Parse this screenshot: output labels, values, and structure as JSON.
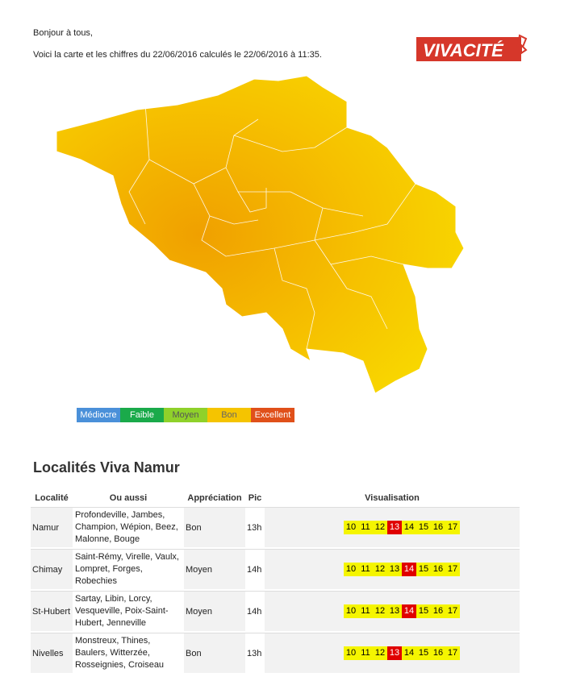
{
  "intro": {
    "greeting": "Bonjour à tous,",
    "line": "Voici la carte et les chiffres du 22/06/2016 calculés le 22/06/2016 à 11:35."
  },
  "logo": {
    "text": "VIVACITÉ"
  },
  "legend": [
    {
      "label": "Médiocre",
      "color": "#4a90d9"
    },
    {
      "label": "Faible",
      "color": "#1aaa4a"
    },
    {
      "label": "Moyen",
      "color": "#8fd12a"
    },
    {
      "label": "Bon",
      "color": "#f5c400"
    },
    {
      "label": "Excellent",
      "color": "#e0501a"
    }
  ],
  "section": {
    "title": "Localités Viva Namur"
  },
  "table": {
    "headers": [
      "Localité",
      "Ou aussi",
      "Appréciation",
      "Pic",
      "Visualisation"
    ],
    "rows": [
      {
        "loc": "Namur",
        "aussi": "Profondeville, Jambes, Champion, Wépion, Beez, Malonne, Bouge",
        "app": "Bon",
        "pic": "13h",
        "peak": 13
      },
      {
        "loc": "Chimay",
        "aussi": "Saint-Rémy, Virelle, Vaulx, Lompret, Forges, Robechies",
        "app": "Moyen",
        "pic": "14h",
        "peak": 14
      },
      {
        "loc": "St-Hubert",
        "aussi": "Sartay, Libin, Lorcy, Vesqueville, Poix-Saint-Hubert, Jenneville",
        "app": "Moyen",
        "pic": "14h",
        "peak": 14
      },
      {
        "loc": "Nivelles",
        "aussi": "Monstreux, Thines, Baulers, Witterzée, Rosseignies, Croiseau",
        "app": "Bon",
        "pic": "13h",
        "peak": 13
      }
    ],
    "hours": [
      "10",
      "11",
      "12",
      "13",
      "14",
      "15",
      "16",
      "17"
    ]
  }
}
